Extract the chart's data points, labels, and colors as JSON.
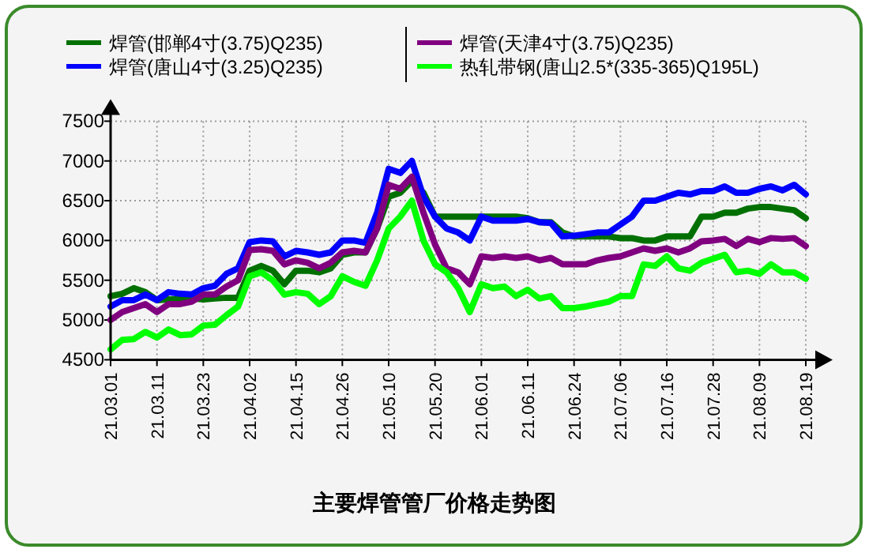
{
  "chart_data": {
    "type": "line",
    "title": "主要焊管管厂价格走势图",
    "categories": [
      "21.03.01",
      null,
      null,
      null,
      "21.03.11",
      null,
      null,
      null,
      "21.03.23",
      null,
      null,
      null,
      "21.04.02",
      null,
      null,
      null,
      "21.04.15",
      null,
      null,
      null,
      "21.04.26",
      null,
      null,
      null,
      "21.05.10",
      null,
      null,
      null,
      "21.05.20",
      null,
      null,
      null,
      "21.06.01",
      null,
      null,
      null,
      "21.06.11",
      null,
      null,
      null,
      "21.06.24",
      null,
      null,
      null,
      "21.07.06",
      null,
      null,
      null,
      "21.07.16",
      null,
      null,
      null,
      "21.07.28",
      null,
      null,
      null,
      "21.08.09",
      null,
      null,
      null,
      "21.08.19"
    ],
    "series": [
      {
        "name": "焊管(邯郸4寸(3.75)Q235)",
        "color": "#007000",
        "values": [
          5300,
          5330,
          5400,
          5350,
          5250,
          5260,
          5260,
          5270,
          5260,
          5270,
          5280,
          5280,
          5620,
          5680,
          5620,
          5450,
          5620,
          5620,
          5600,
          5650,
          5820,
          5850,
          5850,
          6150,
          6550,
          6600,
          6750,
          6600,
          6300,
          6300,
          6300,
          6300,
          6300,
          6300,
          6300,
          6300,
          6280,
          6230,
          6230,
          6100,
          6050,
          6050,
          6050,
          6050,
          6030,
          6030,
          6000,
          6000,
          6050,
          6050,
          6050,
          6300,
          6300,
          6350,
          6350,
          6400,
          6420,
          6420,
          6400,
          6380,
          6280
        ]
      },
      {
        "name": "焊管(唐山4寸(3.25)Q235)",
        "color": "#0000ff",
        "values": [
          5170,
          5250,
          5250,
          5320,
          5250,
          5350,
          5330,
          5320,
          5400,
          5430,
          5580,
          5650,
          5980,
          6000,
          5990,
          5800,
          5870,
          5850,
          5820,
          5850,
          6000,
          6000,
          5970,
          6350,
          6900,
          6850,
          7000,
          6550,
          6300,
          6150,
          6100,
          6000,
          6300,
          6250,
          6250,
          6250,
          6270,
          6230,
          6220,
          6050,
          6060,
          6080,
          6100,
          6100,
          6200,
          6300,
          6500,
          6500,
          6550,
          6600,
          6580,
          6620,
          6620,
          6680,
          6600,
          6600,
          6650,
          6680,
          6630,
          6700,
          6580
        ]
      },
      {
        "name": "焊管(天津4寸(3.75)Q235)",
        "color": "#800080",
        "values": [
          5000,
          5100,
          5150,
          5200,
          5100,
          5200,
          5200,
          5230,
          5320,
          5320,
          5420,
          5500,
          5880,
          5890,
          5870,
          5700,
          5750,
          5720,
          5650,
          5720,
          5850,
          5870,
          5850,
          6150,
          6700,
          6650,
          6800,
          6350,
          5950,
          5650,
          5600,
          5450,
          5800,
          5780,
          5800,
          5780,
          5800,
          5750,
          5780,
          5700,
          5700,
          5700,
          5750,
          5780,
          5800,
          5850,
          5900,
          5870,
          5900,
          5850,
          5900,
          5990,
          6000,
          6020,
          5930,
          6020,
          5980,
          6030,
          6020,
          6030,
          5930
        ]
      },
      {
        "name": "热轧带钢(唐山2.5*(335-365)Q195L)",
        "color": "#00ff00",
        "values": [
          4630,
          4750,
          4760,
          4850,
          4780,
          4880,
          4810,
          4820,
          4930,
          4940,
          5060,
          5170,
          5550,
          5600,
          5500,
          5320,
          5350,
          5330,
          5200,
          5300,
          5550,
          5480,
          5430,
          5750,
          6150,
          6300,
          6500,
          6000,
          5700,
          5600,
          5400,
          5100,
          5450,
          5400,
          5420,
          5300,
          5380,
          5270,
          5300,
          5150,
          5150,
          5170,
          5200,
          5230,
          5300,
          5300,
          5700,
          5680,
          5800,
          5650,
          5620,
          5720,
          5770,
          5820,
          5600,
          5620,
          5580,
          5700,
          5600,
          5600,
          5520
        ]
      }
    ],
    "ylim": [
      4500,
      7500
    ],
    "yticks": [
      4500,
      5000,
      5500,
      6000,
      6500,
      7000,
      7500
    ],
    "grid": true,
    "legend": "top",
    "marker": "none",
    "line_style": "solid"
  }
}
